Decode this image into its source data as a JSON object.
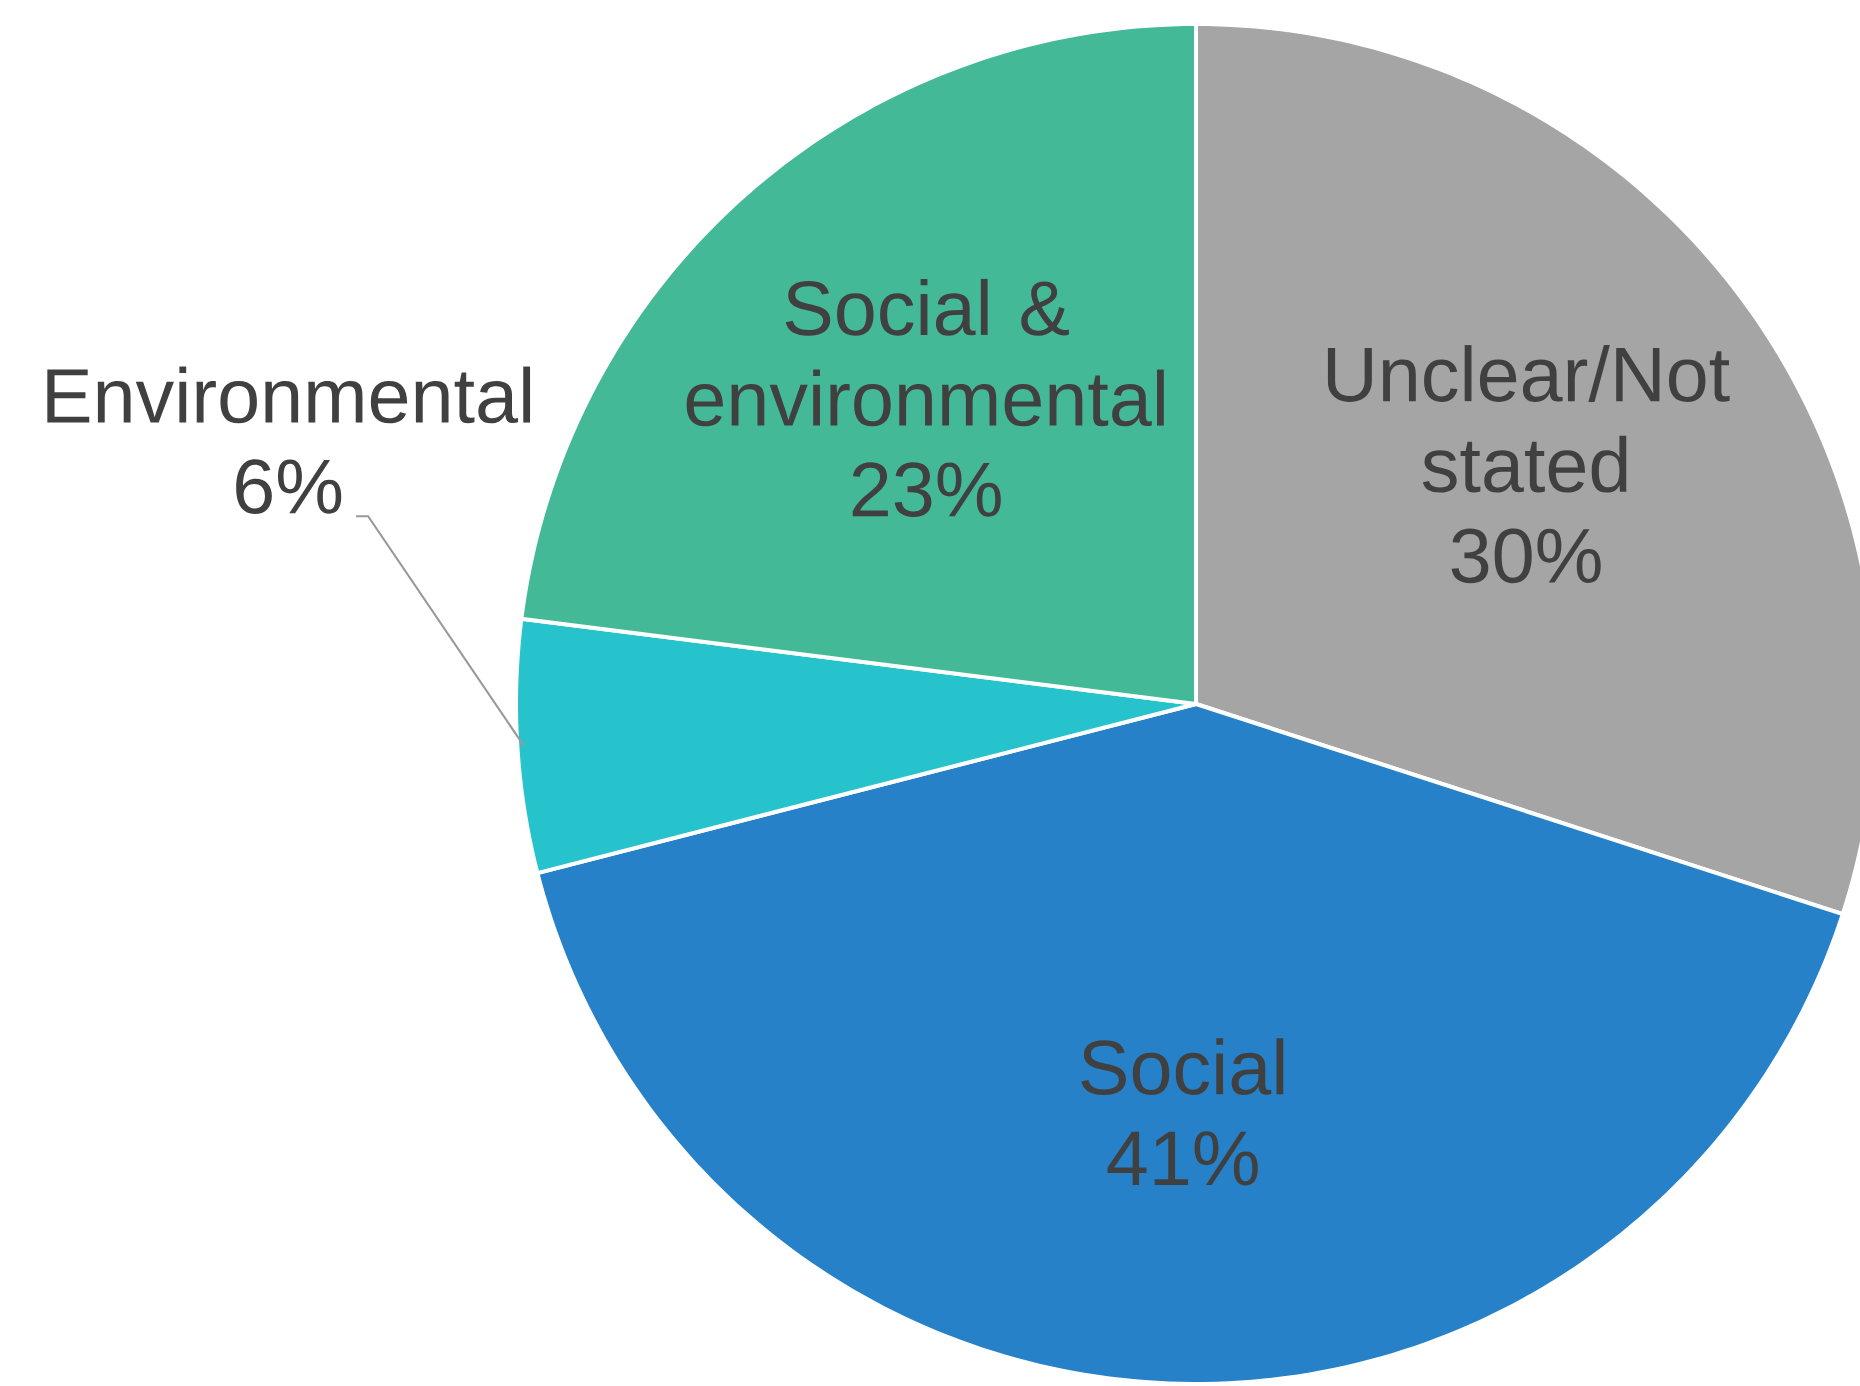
{
  "chart_data": {
    "type": "pie",
    "categories": [
      "Unclear/Not stated",
      "Social",
      "Environmental",
      "Social & environmental"
    ],
    "values": [
      30,
      41,
      6,
      23
    ],
    "value_labels": [
      "30%",
      "41%",
      "6%",
      "23%"
    ],
    "colors": [
      "#a5a5a5",
      "#2681c8",
      "#27c3cc",
      "#43b998"
    ]
  }
}
